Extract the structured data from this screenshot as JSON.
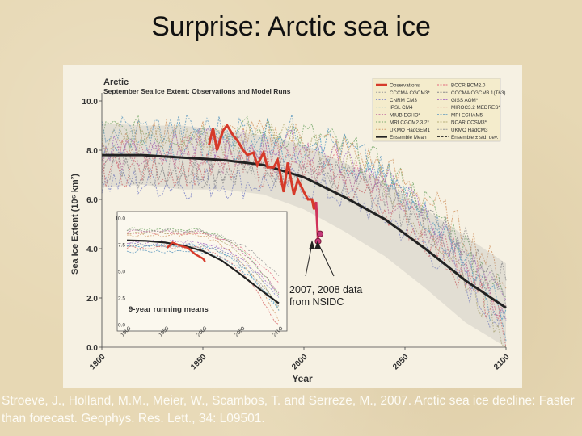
{
  "slide": {
    "title": "Surprise: Arctic sea ice",
    "citation": "Stroeve, J., Holland, M.M., Meier, W., Scambos, T. and Serreze, M., 2007. Arctic sea ice decline: Faster than forecast. Geophys. Res. Lett., 34: L09501."
  },
  "chart_data": {
    "type": "line",
    "title": "Arctic",
    "subtitle": "September Sea Ice Extent: Observations and Model Runs",
    "xlabel": "Year",
    "ylabel": "Sea Ice Extent (10⁶ km²)",
    "xlim": [
      1900,
      2100
    ],
    "ylim": [
      0,
      10
    ],
    "x_ticks": [
      "1900",
      "1950",
      "2000",
      "2050",
      "2100"
    ],
    "y_ticks": [
      "0.0",
      "2.0",
      "4.0",
      "6.0",
      "8.0",
      "10.0"
    ],
    "legend": {
      "placement": "top-right",
      "left": [
        "Observations",
        "CCCMA CGCM3*",
        "CNRM CM3",
        "IPSL CM4",
        "MIUB ECHO*",
        "MRI CGCM2.3.2*",
        "UKMO HadGEM1",
        "Ensemble Mean"
      ],
      "right": [
        "BCCR BCM2.0",
        "CCCMA CGCM3.1(T63)",
        "GISS AOM*",
        "MIROC3.2 MEDRES*",
        "MPI ECHAM5",
        "NCAR CCSM3*",
        "UKMO HadCM3",
        "Ensemble ± std. dev."
      ]
    },
    "colors": {
      "observations": "#d63a2a",
      "ensemble_mean": "#222222",
      "models": [
        "#e26a7e",
        "#8a8a8a",
        "#7f86c8",
        "#4aa0c9",
        "#c06aa0",
        "#7aaa6e",
        "#d39a6a",
        "#a56ac2",
        "#d86868",
        "#5f9ac0",
        "#b9b07a",
        "#999999"
      ]
    },
    "series": [
      {
        "name": "Observations",
        "x": [
          1953,
          1955,
          1957,
          1960,
          1962,
          1965,
          1967,
          1970,
          1972,
          1975,
          1977,
          1980,
          1982,
          1985,
          1987,
          1990,
          1992,
          1995,
          1997,
          2000,
          2002,
          2004,
          2005,
          2006
        ],
        "y": [
          8.2,
          8.9,
          8.0,
          8.8,
          9.0,
          8.6,
          8.4,
          8.0,
          7.8,
          7.9,
          7.4,
          7.9,
          7.3,
          7.3,
          7.6,
          6.3,
          7.5,
          6.2,
          6.8,
          6.3,
          6.0,
          6.0,
          5.6,
          5.9
        ]
      },
      {
        "name": "Ensemble Mean",
        "x": [
          1900,
          1920,
          1940,
          1960,
          1980,
          2000,
          2020,
          2040,
          2060,
          2080,
          2100
        ],
        "y": [
          7.8,
          7.8,
          7.7,
          7.6,
          7.4,
          6.9,
          6.1,
          5.2,
          4.0,
          2.7,
          1.6
        ]
      },
      {
        "name": "Ensemble ± std. dev.",
        "x": [
          1900,
          1920,
          1940,
          1960,
          1980,
          2000,
          2020,
          2040,
          2060,
          2080,
          2100
        ],
        "upper": [
          9.1,
          9.0,
          9.0,
          8.8,
          8.6,
          8.2,
          7.5,
          6.7,
          5.6,
          4.5,
          3.4
        ],
        "lower": [
          6.5,
          6.6,
          6.4,
          6.4,
          6.2,
          5.6,
          4.7,
          3.7,
          2.4,
          1.0,
          0.0
        ]
      }
    ],
    "observed_points": [
      {
        "x": 2007,
        "y": 4.3
      },
      {
        "x": 2008,
        "y": 4.6
      }
    ],
    "annotation": "2007, 2008 data from NSIDC",
    "inset": {
      "label": "9-year running means",
      "xlim": [
        1900,
        2100
      ],
      "ylim": [
        0,
        10
      ],
      "x_ticks": [
        "1900",
        "1950",
        "2000",
        "2050",
        "2100"
      ],
      "y_ticks": [
        "0.0",
        "2.5",
        "5.0",
        "7.5",
        "10.0"
      ],
      "observations": {
        "x": [
          1953,
          1960,
          1970,
          1980,
          1990,
          2000,
          2003
        ],
        "y": [
          7.2,
          7.7,
          7.4,
          7.2,
          6.6,
          6.2,
          5.9
        ]
      },
      "ensemble_mean": {
        "x": [
          1900,
          1925,
          1950,
          1975,
          2000,
          2025,
          2050,
          2075,
          2100
        ],
        "y": [
          7.9,
          7.85,
          7.7,
          7.4,
          6.9,
          6.0,
          4.7,
          3.3,
          2.0
        ]
      }
    }
  }
}
